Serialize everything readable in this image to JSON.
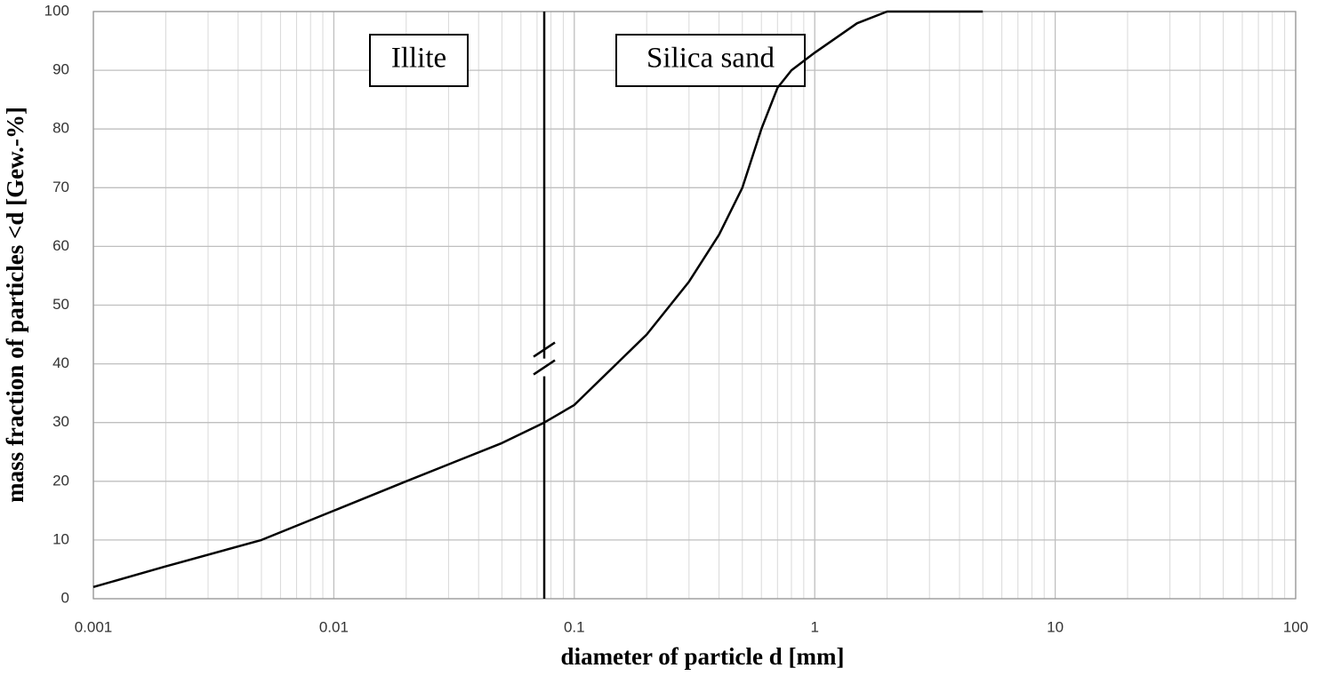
{
  "chart_data": {
    "type": "line",
    "x_label": "diameter of particle d [mm]",
    "y_label": "mass fraction of particles <d [Gew.-%]",
    "x": [
      0.001,
      0.002,
      0.005,
      0.01,
      0.02,
      0.05,
      0.075,
      0.1,
      0.2,
      0.3,
      0.4,
      0.5,
      0.6,
      0.7,
      0.8,
      1,
      1.5,
      2,
      5
    ],
    "values": [
      2,
      5.5,
      10,
      15,
      20,
      26.5,
      30,
      33,
      45,
      54,
      62,
      70,
      80,
      87,
      90,
      93,
      98,
      100,
      100
    ],
    "color": "#000000",
    "xlim": [
      0.001,
      100
    ],
    "xticks": [
      0.001,
      0.01,
      0.1,
      1,
      10,
      100
    ],
    "xscale": "log",
    "ylim": [
      0,
      100
    ],
    "yticks": [
      0,
      10,
      20,
      30,
      40,
      50,
      60,
      70,
      80,
      90,
      100
    ],
    "grid": true,
    "vline": {
      "x": 0.075,
      "break_y": 40
    },
    "annotations": [
      "Illite",
      "Silica sand"
    ]
  }
}
